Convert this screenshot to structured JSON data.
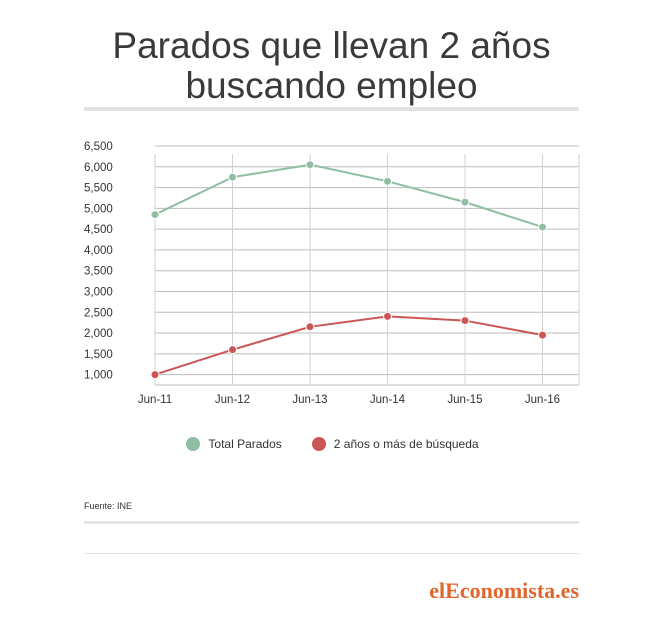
{
  "title_line1": "Parados que llevan 2 años",
  "title_line2": "buscando empleo",
  "source": "Fuente: INE",
  "logo": "elEconomista.es",
  "chart_data": {
    "type": "line",
    "title": "Parados que llevan 2 años buscando empleo",
    "categories": [
      "Jun-11",
      "Jun-12",
      "Jun-13",
      "Jun-14",
      "Jun-15",
      "Jun-16"
    ],
    "yticks": [
      "1,000",
      "1,500",
      "2,000",
      "2,500",
      "3,000",
      "3,500",
      "4,000",
      "4,500",
      "5,000",
      "5,500",
      "6,000",
      "6,500"
    ],
    "ylim": [
      750,
      6500
    ],
    "grid": true,
    "legend_position": "bottom",
    "series": [
      {
        "name": "Total Parados",
        "color": "#8fbfa2",
        "values": [
          4850,
          5750,
          6050,
          5650,
          5150,
          4550
        ]
      },
      {
        "name": "2 años o más de búsqueda",
        "color": "#cc5555",
        "values": [
          1000,
          1600,
          2150,
          2400,
          2300,
          1950
        ]
      }
    ]
  }
}
